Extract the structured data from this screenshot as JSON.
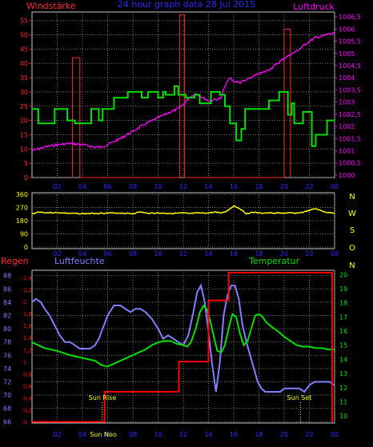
{
  "colors": {
    "background": "#000000",
    "frame": "#c8c8c8",
    "grid": "#7a7a7a",
    "wind": "#ff2a2a",
    "pressure": "#ff00ff",
    "direction": "#ffff00",
    "rain": "#ff0000",
    "humidity": "#8080ff",
    "temperature": "#00e000",
    "time": "#2a2aff",
    "sun": "#ffff00"
  },
  "x_ticks": [
    "02",
    "04",
    "06",
    "08",
    "10",
    "12",
    "14",
    "16",
    "18",
    "20",
    "22",
    "00"
  ],
  "chart_data": [
    {
      "type": "line",
      "title": "24 hour graph data  28 Jul 2015",
      "left_label": "Windstärke",
      "right_label": "Luftdruck",
      "x_range": [
        0,
        24
      ],
      "left_axis": {
        "ticks": [
          "0",
          "5",
          "10",
          "15",
          "20",
          "25",
          "30",
          "35",
          "40",
          "45",
          "50",
          "55"
        ],
        "range": [
          0,
          58
        ]
      },
      "right_axis": {
        "ticks": [
          "1000",
          "1000,5",
          "1001",
          "1001,5",
          "1002",
          "1002,5",
          "1003",
          "1003,5",
          "1004",
          "1004,5",
          "1005",
          "1005,5",
          "1006",
          "1006,5"
        ],
        "range": [
          999.9,
          1006.7
        ]
      },
      "series": [
        {
          "key": "wind_speed",
          "x": [
            0,
            0.5,
            0.5,
            1.8,
            1.8,
            2.8,
            2.8,
            3.4,
            3.4,
            4.7,
            4.7,
            5.3,
            5.3,
            5.6,
            5.6,
            6.5,
            6.5,
            7.6,
            7.6,
            8.7,
            8.7,
            9.2,
            9.2,
            10,
            10,
            10.4,
            10.4,
            10.6,
            10.6,
            11.3,
            11.3,
            11.6,
            11.6,
            12.2,
            12.2,
            12.9,
            12.9,
            13.3,
            13.3,
            14.2,
            14.2,
            14.9,
            14.9,
            15.3,
            15.3,
            15.7,
            15.7,
            16.2,
            16.2,
            16.6,
            16.6,
            16.9,
            16.9,
            18.8,
            18.8,
            19.6,
            19.6,
            20.3,
            20.3,
            20.6,
            20.6,
            20.8,
            20.8,
            21.5,
            21.5,
            22.2,
            22.2,
            22.5,
            22.5,
            23.0,
            23.0,
            23.4,
            23.4,
            24
          ],
          "y": [
            24,
            24,
            19,
            19,
            24,
            24,
            20,
            20,
            19,
            19,
            24,
            24,
            20,
            20,
            24,
            24,
            28,
            28,
            30,
            30,
            28,
            28,
            30,
            30,
            28,
            28,
            30,
            30,
            29,
            29,
            32,
            32,
            29,
            29,
            28,
            28,
            29,
            29,
            26,
            26,
            30,
            30,
            29,
            29,
            25,
            25,
            19,
            19,
            13,
            13,
            17,
            17,
            24,
            24,
            27,
            27,
            30,
            30,
            22,
            22,
            26,
            26,
            19,
            19,
            23,
            23,
            11,
            11,
            15,
            15,
            15,
            15,
            20,
            20
          ]
        },
        {
          "key": "wind_gust",
          "x": [
            3.2,
            3.2,
            3.8,
            3.8,
            11.7,
            11.7,
            12.1,
            12.1,
            20.0,
            20.0,
            20.5,
            20.5
          ],
          "y": [
            0,
            42,
            42,
            0,
            0,
            57,
            57,
            0,
            0,
            52,
            52,
            0
          ]
        },
        {
          "key": "pressure",
          "x": [
            0,
            1,
            2,
            3,
            4,
            5,
            5.5,
            6,
            7,
            8,
            9,
            10,
            11,
            11.5,
            12,
            12.5,
            13,
            13.5,
            14,
            14.5,
            15,
            15.3,
            15.7,
            16,
            16.5,
            17,
            17.5,
            18,
            18.5,
            19,
            19.5,
            20,
            20.5,
            21,
            21.5,
            22,
            22.5,
            23,
            23.5,
            24
          ],
          "y": [
            1001.0,
            1001.15,
            1001.25,
            1001.3,
            1001.25,
            1001.15,
            1001.15,
            1001.25,
            1001.5,
            1001.8,
            1002.1,
            1002.35,
            1002.6,
            1002.7,
            1002.9,
            1003.2,
            1003.35,
            1003.2,
            1003.05,
            1003.1,
            1003.15,
            1003.65,
            1004.0,
            1003.85,
            1003.8,
            1003.9,
            1004.05,
            1004.15,
            1004.25,
            1004.4,
            1004.6,
            1004.8,
            1004.95,
            1005.1,
            1005.3,
            1005.5,
            1005.65,
            1005.7,
            1005.8,
            1005.8
          ]
        }
      ]
    },
    {
      "type": "line",
      "x_range": [
        0,
        24
      ],
      "left_axis": {
        "ticks": [
          "0",
          "90",
          "180",
          "270",
          "360"
        ],
        "range": [
          0,
          360
        ]
      },
      "right_axis": {
        "ticks": [
          "N",
          "W",
          "S",
          "O",
          "N"
        ]
      },
      "series": [
        {
          "key": "wind_direction",
          "x": [
            0,
            0.5,
            1,
            2,
            3,
            4,
            5,
            6,
            7,
            8,
            8.6,
            9,
            10,
            11,
            12,
            12.5,
            13,
            14,
            14.6,
            15,
            15.5,
            16,
            16.5,
            17,
            17.5,
            18,
            19,
            20,
            21,
            21.5,
            22,
            22.5,
            23,
            23.5,
            24
          ],
          "y": [
            225,
            240,
            235,
            235,
            230,
            228,
            230,
            232,
            232,
            228,
            240,
            232,
            232,
            230,
            232,
            228,
            232,
            232,
            240,
            232,
            248,
            282,
            262,
            228,
            238,
            232,
            232,
            232,
            232,
            238,
            250,
            262,
            245,
            235,
            232
          ]
        }
      ]
    },
    {
      "type": "line",
      "rain_label": "Regen",
      "humidity_label": "Luftfeuchte",
      "temperature_label": "Temperatur",
      "x_range": [
        0,
        24
      ],
      "rain_axis": {
        "ticks": [
          "0",
          "0,2",
          "0,4",
          "0,6",
          "0,8",
          "1",
          "1,2",
          "1,4",
          "1,6",
          "1,8",
          "2",
          "2,2",
          "2,4"
        ],
        "range": [
          -0.02,
          2.52
        ]
      },
      "humidity_axis": {
        "ticks": [
          "66",
          "68",
          "70",
          "72",
          "74",
          "76",
          "78",
          "80",
          "82",
          "84",
          "86",
          "88"
        ],
        "range": [
          65.8,
          88.8
        ]
      },
      "temperature_axis": {
        "ticks": [
          "10",
          "11",
          "12",
          "13",
          "14",
          "15",
          "16",
          "17",
          "18",
          "19",
          "20"
        ],
        "range": [
          9.5,
          20.3
        ]
      },
      "sun_rise_label": "Sun Rise",
      "sun_set_label": "Sun Set",
      "sun_rise_time": 5.55,
      "sun_set_time": 21.3,
      "noon_label": "Sun Noo",
      "noon_time": 5.5,
      "series": [
        {
          "key": "rain",
          "x": [
            0,
            5.75,
            5.75,
            11.65,
            11.65,
            14.0,
            14.0,
            15.6,
            15.6,
            23.8,
            23.8
          ],
          "y": [
            0,
            0,
            0.5,
            0.5,
            1.0,
            1.0,
            2.02,
            2.02,
            2.48,
            2.48,
            0
          ]
        },
        {
          "key": "humidity",
          "x": [
            0,
            0.3,
            0.7,
            1,
            1.4,
            1.8,
            2.2,
            2.6,
            3,
            3.4,
            3.8,
            4.2,
            4.6,
            5,
            5.3,
            5.6,
            6,
            6.5,
            7,
            7.4,
            7.8,
            8.2,
            8.6,
            9,
            9.5,
            10,
            10.4,
            10.8,
            11.2,
            11.6,
            12,
            12.4,
            12.8,
            13.1,
            13.4,
            13.7,
            14,
            14.3,
            14.6,
            14.9,
            15.2,
            15.5,
            15.8,
            16.1,
            16.4,
            16.7,
            17,
            17.3,
            17.6,
            17.9,
            18.2,
            18.5,
            18.8,
            19.1,
            19.4,
            19.7,
            20,
            20.4,
            20.8,
            21.2,
            21.6,
            22,
            22.4,
            22.8,
            23.2,
            23.6,
            24
          ],
          "y": [
            84,
            84.5,
            84,
            83,
            82,
            80.5,
            79,
            78,
            78,
            77.5,
            77,
            77,
            77,
            77.5,
            78.5,
            80,
            82,
            83.5,
            83.5,
            83,
            82.5,
            83,
            83,
            82.5,
            81.5,
            80,
            78.5,
            79,
            78.5,
            78,
            77.5,
            79,
            82.5,
            85.5,
            86.5,
            84,
            79.5,
            74.5,
            70.5,
            75,
            82,
            85,
            86.5,
            86.5,
            84.5,
            80.5,
            78,
            76,
            74,
            72,
            71,
            70.5,
            70.5,
            70.5,
            70.5,
            70.5,
            71,
            71,
            71,
            71,
            70.5,
            71.5,
            72,
            72,
            72,
            72,
            71.5
          ]
        },
        {
          "key": "temperature",
          "x": [
            0,
            0.5,
            1,
            1.5,
            2,
            3,
            4,
            5,
            5.5,
            6,
            6.5,
            7,
            7.5,
            8,
            8.5,
            9,
            9.5,
            10,
            10.5,
            11,
            11.5,
            12,
            12.3,
            12.6,
            13,
            13.3,
            13.6,
            13.9,
            14.2,
            14.5,
            14.7,
            15,
            15.3,
            15.6,
            15.9,
            16.2,
            16.5,
            16.8,
            17.1,
            17.4,
            17.7,
            18,
            18.3,
            18.6,
            19,
            19.5,
            20,
            20.5,
            21,
            21.5,
            22,
            22.5,
            23,
            23.5,
            24
          ],
          "y": [
            15.2,
            15.0,
            14.8,
            14.7,
            14.6,
            14.3,
            14.1,
            13.9,
            13.6,
            13.5,
            13.7,
            13.9,
            14.1,
            14.3,
            14.5,
            14.7,
            15.0,
            15.2,
            15.3,
            15.3,
            15.1,
            15.0,
            14.9,
            15.2,
            16.2,
            17.3,
            17.8,
            17.5,
            16.5,
            15.3,
            14.6,
            14.5,
            15.0,
            16.2,
            17.2,
            17.0,
            15.8,
            15.0,
            15.3,
            16.2,
            17.1,
            17.2,
            17.0,
            16.6,
            16.3,
            16.0,
            15.6,
            15.3,
            15.0,
            14.9,
            14.9,
            14.8,
            14.8,
            14.7,
            14.7
          ]
        }
      ]
    }
  ]
}
